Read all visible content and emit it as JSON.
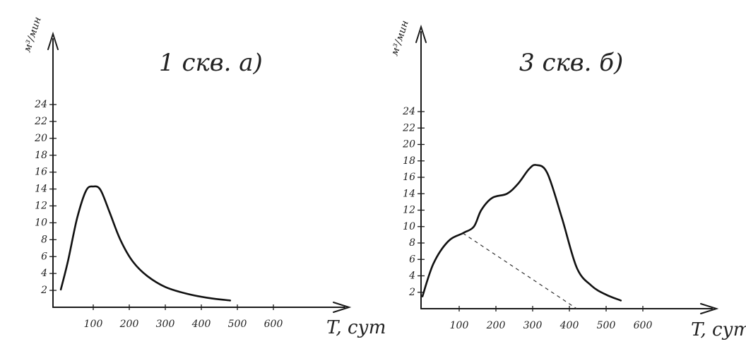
{
  "chart_data": [
    {
      "type": "line",
      "title": "1 скв. а)",
      "xlabel": "T, сут",
      "ylabel": "м³/мин",
      "x_ticks": [
        "100",
        "200",
        "300",
        "400",
        "500",
        "600"
      ],
      "y_ticks": [
        "2",
        "4",
        "6",
        "8",
        "10",
        "12",
        "14",
        "16",
        "18",
        "20",
        "22",
        "24"
      ],
      "xlim": [
        0,
        800
      ],
      "ylim": [
        0,
        24
      ],
      "grid": false,
      "series": [
        {
          "x": [
            10,
            30,
            55,
            80,
            100,
            120,
            145,
            175,
            210,
            250,
            300,
            360,
            420,
            480
          ],
          "y": [
            2.1,
            5.5,
            10.5,
            13.8,
            14.3,
            13.9,
            11.3,
            8.0,
            5.4,
            3.7,
            2.4,
            1.6,
            1.1,
            0.8
          ]
        }
      ]
    },
    {
      "type": "line",
      "title": "3 скв. б)",
      "xlabel": "T, сут",
      "ylabel": "м³/мин",
      "x_ticks": [
        "100",
        "200",
        "300",
        "400",
        "500",
        "600"
      ],
      "y_ticks": [
        "2",
        "4",
        "6",
        "8",
        "10",
        "12",
        "14",
        "16",
        "18",
        "20",
        "22",
        "24"
      ],
      "xlim": [
        0,
        800
      ],
      "ylim": [
        0,
        24
      ],
      "grid": false,
      "series": [
        {
          "x": [
            0,
            30,
            70,
            110,
            140,
            160,
            190,
            230,
            260,
            290,
            310,
            340,
            380,
            420,
            460,
            500,
            540
          ],
          "y": [
            1.5,
            5.5,
            8.2,
            9.2,
            10.0,
            12.0,
            13.5,
            14.0,
            15.2,
            17.0,
            17.5,
            16.5,
            11.0,
            5.0,
            2.8,
            1.7,
            1.0
          ]
        }
      ],
      "extrapolation": {
        "style": "dashed",
        "x": [
          110,
          420
        ],
        "y": [
          9.2,
          0
        ]
      }
    }
  ]
}
